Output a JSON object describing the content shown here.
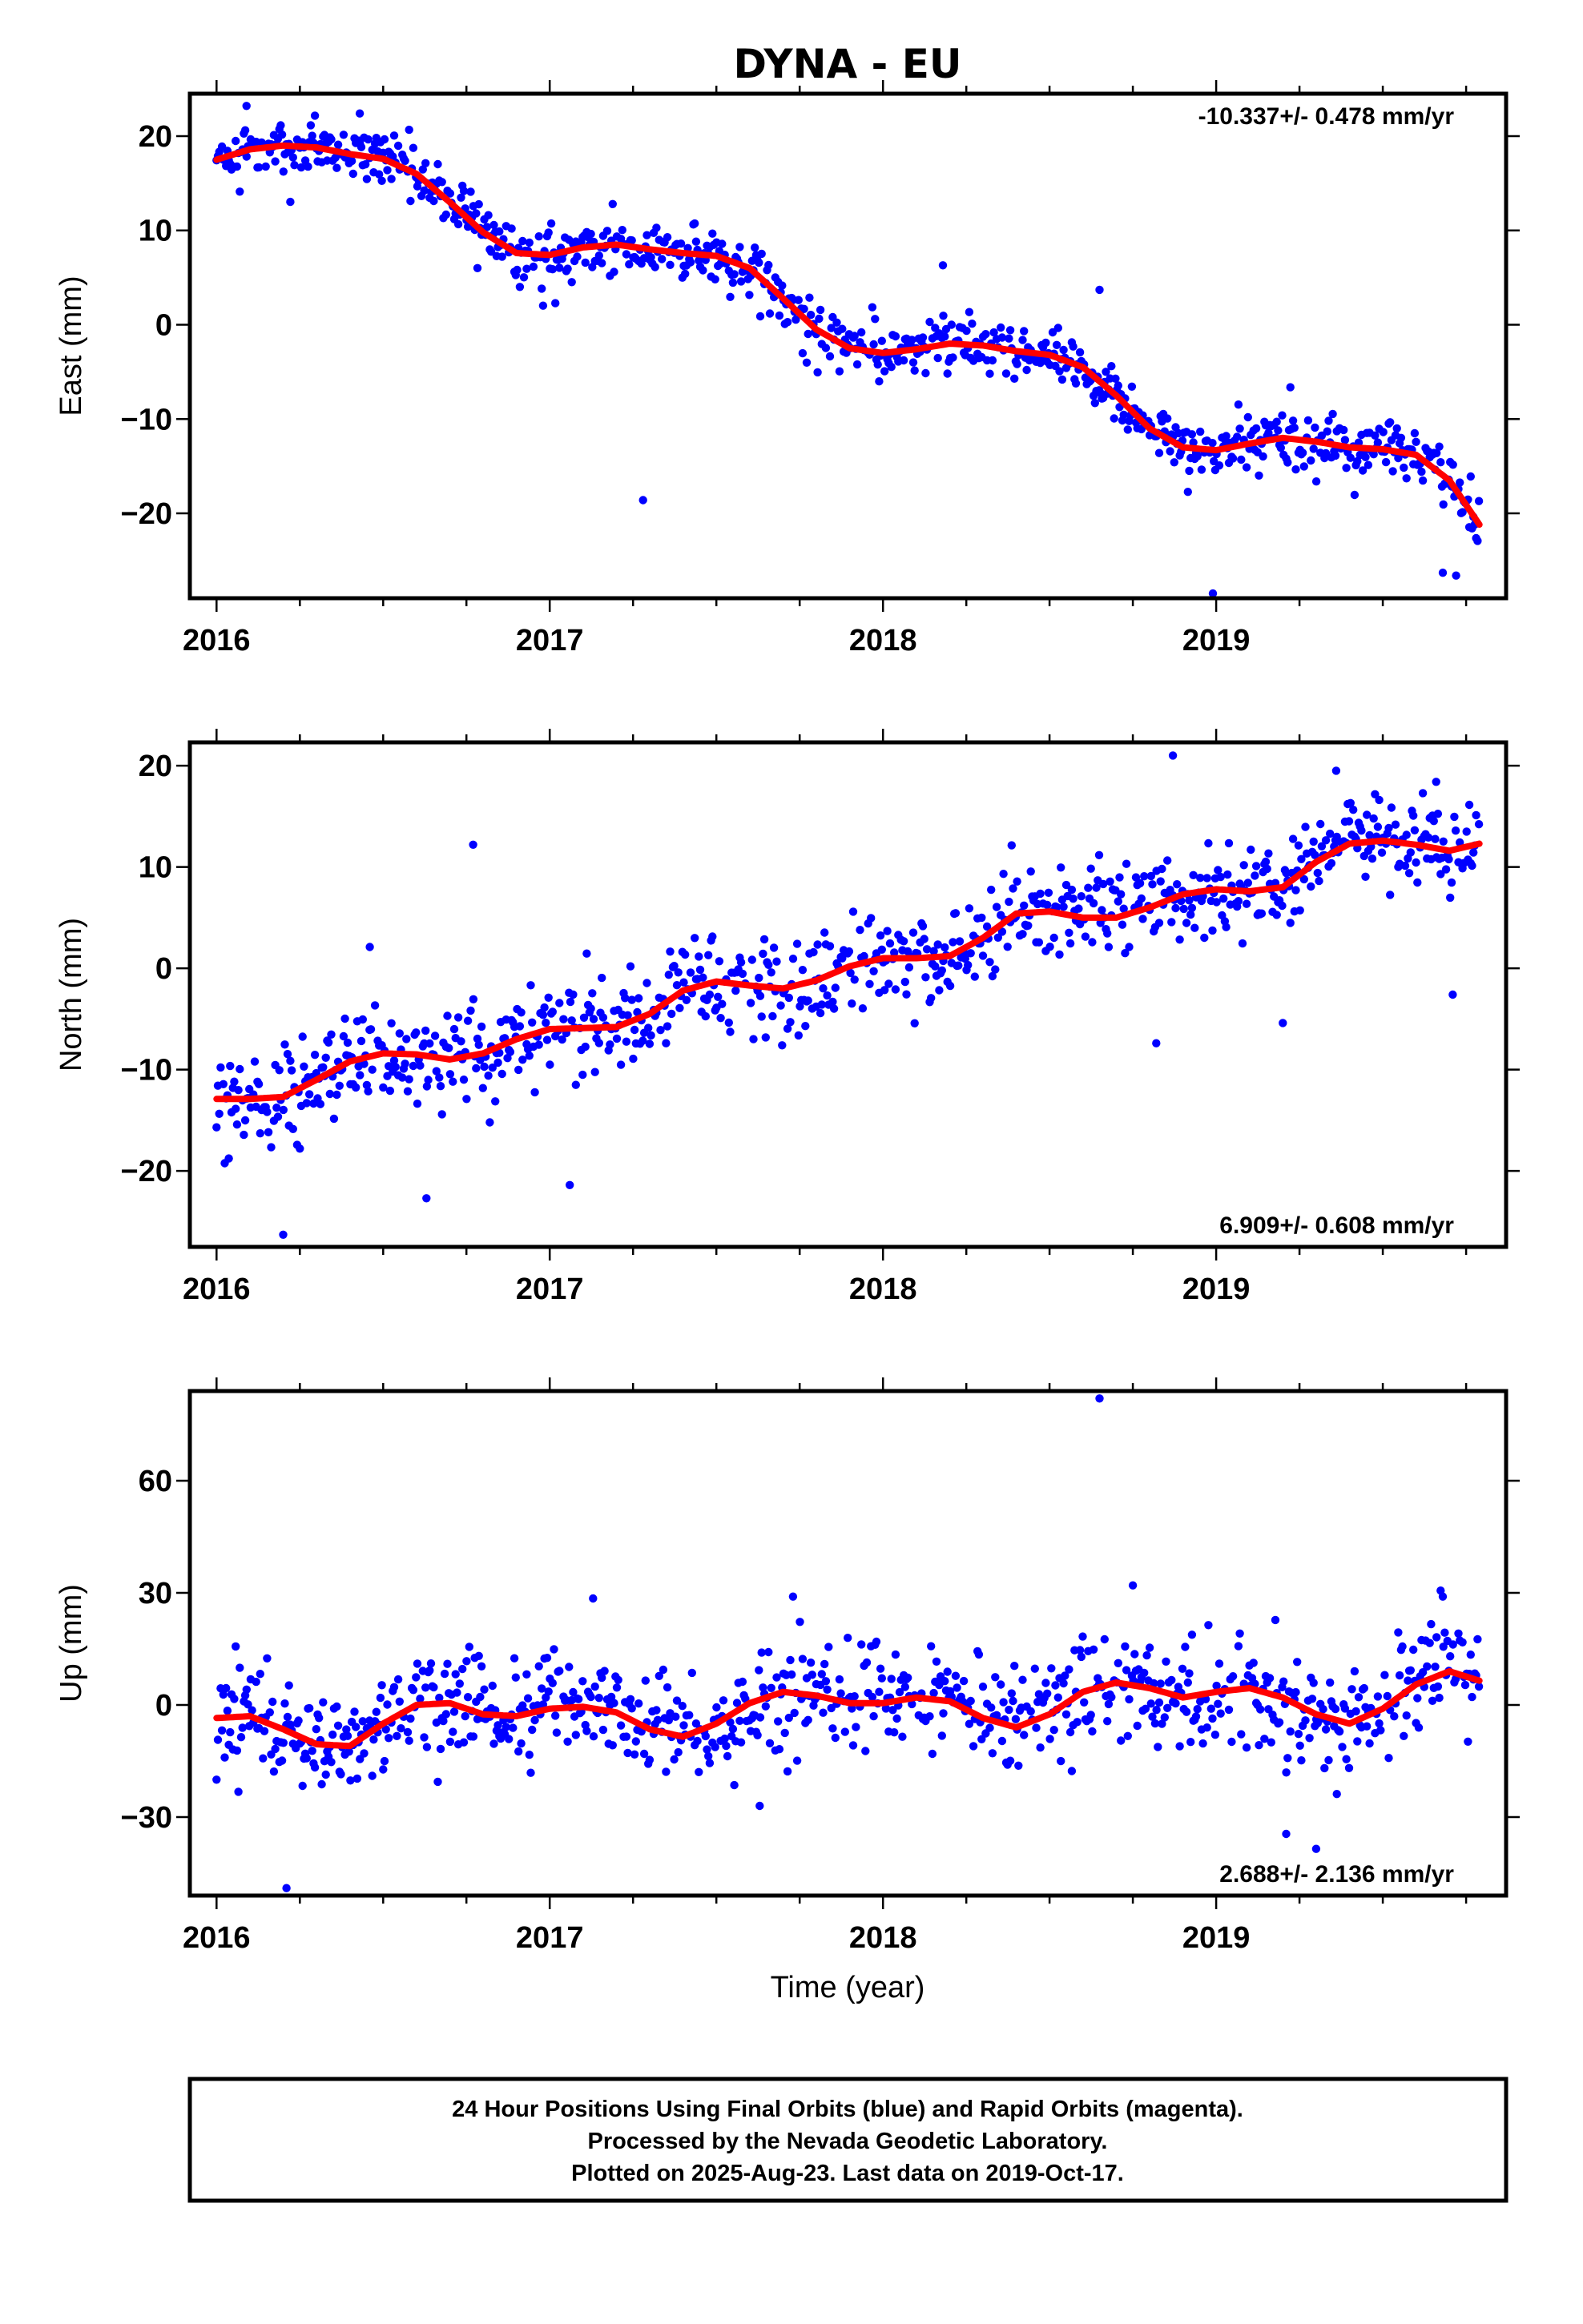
{
  "title": "DYNA - EU",
  "colors": {
    "final_orbits": "#0000ff",
    "rapid_orbits": "#ff00ff",
    "model_fit": "#ff0000",
    "frame": "#000000"
  },
  "chart_data": [
    {
      "type": "scatter",
      "panel": "east",
      "ylabel": "East (mm)",
      "xlabel": "",
      "xlim": [
        2015.92,
        2019.87
      ],
      "ylim": [
        -29,
        24.5
      ],
      "x_ticks": [
        2016,
        2017,
        2018,
        2019
      ],
      "y_ticks": [
        -20,
        -10,
        0,
        10,
        20
      ],
      "rate_label": "-10.337+/- 0.478 mm/yr",
      "rate_position": "top-right",
      "fit_curve": {
        "name": "model fit (red)",
        "x": [
          2016.0,
          2016.1,
          2016.2,
          2016.3,
          2016.4,
          2016.5,
          2016.6,
          2016.7,
          2016.8,
          2016.9,
          2017.0,
          2017.1,
          2017.2,
          2017.3,
          2017.4,
          2017.5,
          2017.6,
          2017.7,
          2017.8,
          2017.9,
          2018.0,
          2018.1,
          2018.2,
          2018.3,
          2018.4,
          2018.5,
          2018.6,
          2018.7,
          2018.8,
          2018.9,
          2019.0,
          2019.1,
          2019.2,
          2019.3,
          2019.4,
          2019.5,
          2019.6,
          2019.7,
          2019.79
        ],
        "y": [
          17.5,
          18.6,
          19.0,
          18.8,
          18.1,
          17.6,
          16.0,
          13.0,
          9.8,
          7.6,
          7.4,
          8.2,
          8.5,
          8.0,
          7.6,
          7.3,
          6.0,
          2.8,
          -0.5,
          -2.5,
          -3.0,
          -2.6,
          -2.0,
          -2.2,
          -2.8,
          -3.2,
          -4.5,
          -7.5,
          -11.0,
          -13.0,
          -13.3,
          -12.6,
          -12.0,
          -12.4,
          -13.0,
          -13.2,
          -13.8,
          -16.5,
          -21.2
        ]
      },
      "outliers": [
        [
          2017.28,
          -18.6
        ],
        [
          2018.99,
          -28.5
        ],
        [
          2019.68,
          -26.3
        ],
        [
          2019.72,
          -26.6
        ],
        [
          2018.65,
          3.7
        ],
        [
          2018.18,
          6.3
        ],
        [
          2016.43,
          22.4
        ],
        [
          2016.09,
          23.2
        ]
      ]
    },
    {
      "type": "scatter",
      "panel": "north",
      "ylabel": "North (mm)",
      "xlabel": "",
      "xlim": [
        2015.92,
        2019.87
      ],
      "ylim": [
        -27.5,
        22.3
      ],
      "x_ticks": [
        2016,
        2017,
        2018,
        2019
      ],
      "y_ticks": [
        -20,
        -10,
        0,
        10,
        20
      ],
      "rate_label": "6.909+/- 0.608 mm/yr",
      "rate_position": "bottom-right",
      "fit_curve": {
        "name": "model fit (red)",
        "x": [
          2016.0,
          2016.1,
          2016.2,
          2016.3,
          2016.4,
          2016.5,
          2016.6,
          2016.7,
          2016.8,
          2016.9,
          2017.0,
          2017.1,
          2017.2,
          2017.3,
          2017.4,
          2017.5,
          2017.6,
          2017.7,
          2017.8,
          2017.9,
          2018.0,
          2018.1,
          2018.2,
          2018.3,
          2018.4,
          2018.5,
          2018.6,
          2018.7,
          2018.8,
          2018.9,
          2019.0,
          2019.1,
          2019.2,
          2019.3,
          2019.4,
          2019.5,
          2019.6,
          2019.7,
          2019.79
        ],
        "y": [
          -12.9,
          -12.9,
          -12.7,
          -11.0,
          -9.2,
          -8.4,
          -8.5,
          -9.0,
          -8.4,
          -7.0,
          -6.0,
          -5.9,
          -5.8,
          -4.5,
          -2.2,
          -1.3,
          -1.7,
          -2.0,
          -1.2,
          0.2,
          1.0,
          1.0,
          1.2,
          3.0,
          5.4,
          5.6,
          5.0,
          5.0,
          6.0,
          7.3,
          7.8,
          7.6,
          8.0,
          10.5,
          12.3,
          12.6,
          12.2,
          11.6,
          12.3
        ]
      },
      "outliers": [
        [
          2016.2,
          -26.3
        ],
        [
          2016.63,
          -22.7
        ],
        [
          2017.06,
          -21.4
        ],
        [
          2016.46,
          2.1
        ],
        [
          2016.77,
          12.2
        ],
        [
          2018.87,
          21.0
        ],
        [
          2019.66,
          18.4
        ],
        [
          2019.36,
          19.5
        ],
        [
          2019.71,
          -2.6
        ],
        [
          2019.2,
          -5.4
        ],
        [
          2018.82,
          -7.4
        ]
      ]
    },
    {
      "type": "scatter",
      "panel": "up",
      "ylabel": "Up (mm)",
      "xlabel": "Time (year)",
      "xlim": [
        2015.92,
        2019.87
      ],
      "ylim": [
        -51,
        84
      ],
      "x_ticks": [
        2016,
        2017,
        2018,
        2019
      ],
      "y_ticks": [
        -30,
        0,
        30,
        60
      ],
      "rate_label": "2.688+/- 2.136 mm/yr",
      "rate_position": "bottom-right",
      "fit_curve": {
        "name": "model fit (red)",
        "x": [
          2016.0,
          2016.1,
          2016.2,
          2016.3,
          2016.4,
          2016.5,
          2016.6,
          2016.7,
          2016.8,
          2016.9,
          2017.0,
          2017.1,
          2017.2,
          2017.3,
          2017.4,
          2017.5,
          2017.6,
          2017.7,
          2017.8,
          2017.9,
          2018.0,
          2018.1,
          2018.2,
          2018.3,
          2018.4,
          2018.5,
          2018.6,
          2018.7,
          2018.8,
          2018.9,
          2019.0,
          2019.1,
          2019.2,
          2019.3,
          2019.4,
          2019.5,
          2019.6,
          2019.7,
          2019.79
        ],
        "y": [
          -3.5,
          -3.0,
          -6.5,
          -10.5,
          -11.0,
          -5.0,
          0.0,
          0.5,
          -2.5,
          -3.0,
          -1.0,
          -0.5,
          -2.0,
          -6.5,
          -8.5,
          -5.0,
          0.5,
          3.5,
          2.5,
          0.5,
          0.5,
          2.0,
          1.0,
          -3.5,
          -6.0,
          -2.5,
          3.5,
          6.0,
          4.5,
          2.0,
          3.5,
          4.5,
          2.0,
          -2.5,
          -5.0,
          -1.0,
          5.5,
          9.0,
          6.5
        ]
      },
      "outliers": [
        [
          2016.21,
          -49.0
        ],
        [
          2018.65,
          82.0
        ],
        [
          2018.75,
          32.0
        ],
        [
          2019.68,
          29.0
        ],
        [
          2017.13,
          28.5
        ],
        [
          2017.73,
          29.0
        ],
        [
          2019.3,
          -38.5
        ],
        [
          2019.21,
          -34.5
        ],
        [
          2017.63,
          -27.0
        ]
      ]
    }
  ],
  "caption": {
    "line1": "24 Hour Positions Using Final Orbits (blue) and Rapid Orbits (magenta).",
    "line2": "Processed by the Nevada Geodetic Laboratory.",
    "line3": "Plotted on 2025-Aug-23. Last data on 2019-Oct-17."
  }
}
